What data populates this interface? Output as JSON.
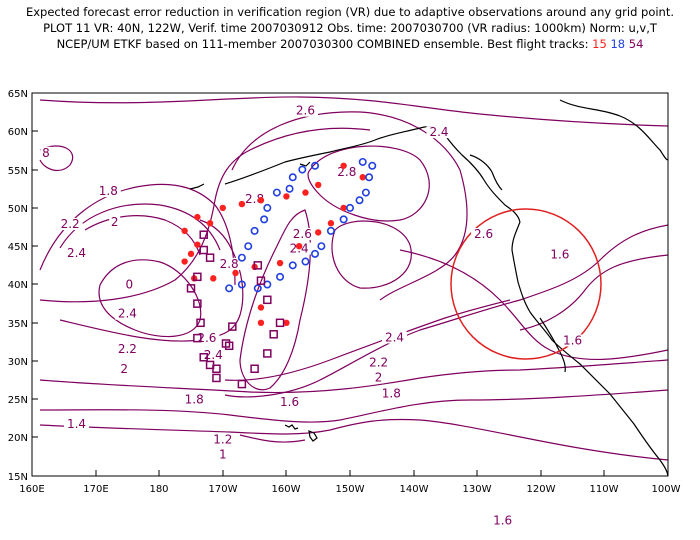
{
  "title": {
    "line1": "Expected forecast error reduction in verification region (VR) due to adaptive observations around any grid point.",
    "line2": "PLOT 11 VR: 40N, 122W, Verif. time 2007030912 Obs. time: 2007030700 (VR radius: 1000km) Norm: u,v,T",
    "line3_prefix": "NCEP/UM ETKF based on 111-member 2007030300 COMBINED ensemble.  Best flight tracks:",
    "track_a": "15",
    "track_b": "18",
    "track_c": "54"
  },
  "axes": {
    "x_ticks": [
      "160E",
      "170E",
      "180",
      "170W",
      "160W",
      "150W",
      "140W",
      "130W",
      "120W",
      "110W",
      "100W"
    ],
    "y_ticks": [
      "65N",
      "60N",
      "55N",
      "50N",
      "45N",
      "40N",
      "35N",
      "30N",
      "25N",
      "20N",
      "15N"
    ],
    "lon_range": [
      160,
      260
    ],
    "lat_range": [
      15,
      65
    ]
  },
  "colors": {
    "contour": "#800060",
    "track_15": "#ff2020",
    "track_18": "#2040e0",
    "track_54": "#800060",
    "vr_circle": "#e02020",
    "coast": "#000000"
  },
  "verification_region": {
    "center_lat": 40,
    "center_lon": -122,
    "radius_km": 1000
  },
  "contour_labels": [
    {
      "text": "2.6",
      "lon": 203,
      "lat": 62.3
    },
    {
      "text": "2.4",
      "lon": 224,
      "lat": 59.5
    },
    {
      "text": "2.8",
      "lon": 209.5,
      "lat": 54.3
    },
    {
      "text": "2.8",
      "lon": 195,
      "lat": 50.8
    },
    {
      "text": "2.6",
      "lon": 202.5,
      "lat": 46.2
    },
    {
      "text": "2.4",
      "lon": 202,
      "lat": 44.3
    },
    {
      "text": "2.6",
      "lon": 231,
      "lat": 46.2
    },
    {
      "text": "1.6",
      "lon": 243,
      "lat": 43.5
    },
    {
      "text": "1.8",
      "lon": 172,
      "lat": 51.8
    },
    {
      "text": "2",
      "lon": 173,
      "lat": 47.8
    },
    {
      "text": "2.2",
      "lon": 166,
      "lat": 47.5
    },
    {
      "text": "2.4",
      "lon": 167,
      "lat": 43.7
    },
    {
      "text": "2.4",
      "lon": 175,
      "lat": 35.8
    },
    {
      "text": "2.2",
      "lon": 175,
      "lat": 31.2
    },
    {
      "text": "2",
      "lon": 174.5,
      "lat": 28.6
    },
    {
      "text": "2.8",
      "lon": 191,
      "lat": 42.3
    },
    {
      "text": "2.6",
      "lon": 187.5,
      "lat": 32.6
    },
    {
      "text": "2.4",
      "lon": 188.5,
      "lat": 30.4
    },
    {
      "text": "1.8",
      "lon": 185.5,
      "lat": 24.6
    },
    {
      "text": "1.6",
      "lon": 200.5,
      "lat": 24.3
    },
    {
      "text": "1.4",
      "lon": 167,
      "lat": 21.4
    },
    {
      "text": "1.2",
      "lon": 190,
      "lat": 19.4
    },
    {
      "text": "1",
      "lon": 190,
      "lat": 17.4
    },
    {
      "text": "2.4",
      "lon": 217,
      "lat": 32.7
    },
    {
      "text": "2.2",
      "lon": 214.5,
      "lat": 29.4
    },
    {
      "text": "2",
      "lon": 214.5,
      "lat": 27.5
    },
    {
      "text": "1.8",
      "lon": 216.5,
      "lat": 25.4
    },
    {
      "text": "1.6",
      "lon": 245,
      "lat": 32.3
    },
    {
      "text": "1.6",
      "lon": 234,
      "lat": 8.8
    },
    {
      "text": "0",
      "lon": 175.3,
      "lat": 39.6
    },
    {
      "text": "8",
      "lon": 162.2,
      "lat": 56.8
    }
  ],
  "track_15_points": [
    [
      209,
      55.5
    ],
    [
      212,
      54
    ],
    [
      205,
      53
    ],
    [
      203,
      52
    ],
    [
      200,
      51.5
    ],
    [
      196,
      51
    ],
    [
      193,
      50.5
    ],
    [
      190,
      50
    ],
    [
      186,
      48.8
    ],
    [
      188,
      48
    ],
    [
      184,
      47
    ],
    [
      209,
      50
    ],
    [
      207,
      48
    ],
    [
      205,
      46.8
    ],
    [
      202,
      45
    ],
    [
      199,
      42.8
    ],
    [
      195,
      42.3
    ],
    [
      192,
      41.5
    ],
    [
      185,
      44
    ],
    [
      186,
      45.2
    ],
    [
      185.5,
      40.8
    ],
    [
      188.5,
      40.8
    ],
    [
      184,
      43
    ],
    [
      196,
      37
    ],
    [
      196,
      35
    ],
    [
      200,
      35
    ]
  ],
  "track_18_points": [
    [
      212,
      56
    ],
    [
      213.5,
      55.5
    ],
    [
      213,
      54
    ],
    [
      212.5,
      52
    ],
    [
      211.5,
      51
    ],
    [
      210,
      50
    ],
    [
      209,
      48.5
    ],
    [
      207,
      47
    ],
    [
      205.5,
      45
    ],
    [
      204.5,
      44
    ],
    [
      203,
      43
    ],
    [
      201,
      42.5
    ],
    [
      199,
      41
    ],
    [
      197,
      40
    ],
    [
      195.5,
      39.5
    ],
    [
      193,
      40
    ],
    [
      191,
      39.5
    ],
    [
      193,
      43.5
    ],
    [
      194,
      45
    ],
    [
      195,
      47
    ],
    [
      196.5,
      48.5
    ],
    [
      197,
      50
    ],
    [
      198.5,
      52
    ],
    [
      200.5,
      52.5
    ],
    [
      201,
      54
    ],
    [
      202.5,
      55
    ],
    [
      204.5,
      55.5
    ]
  ],
  "track_54_points": [
    [
      187,
      46.5
    ],
    [
      187,
      44.5
    ],
    [
      188,
      43.5
    ],
    [
      186,
      41
    ],
    [
      185,
      39.5
    ],
    [
      186,
      37.5
    ],
    [
      186.5,
      35
    ],
    [
      186,
      33
    ],
    [
      187,
      30.5
    ],
    [
      188,
      29.5
    ],
    [
      189,
      29
    ],
    [
      193,
      27
    ],
    [
      195,
      29
    ],
    [
      197,
      31
    ],
    [
      198,
      33.5
    ],
    [
      199,
      35
    ],
    [
      197,
      38
    ],
    [
      196,
      40.5
    ],
    [
      195.5,
      42.5
    ],
    [
      191.5,
      34.5
    ],
    [
      191,
      32
    ],
    [
      189,
      27.8
    ],
    [
      190.5,
      32.3
    ]
  ]
}
